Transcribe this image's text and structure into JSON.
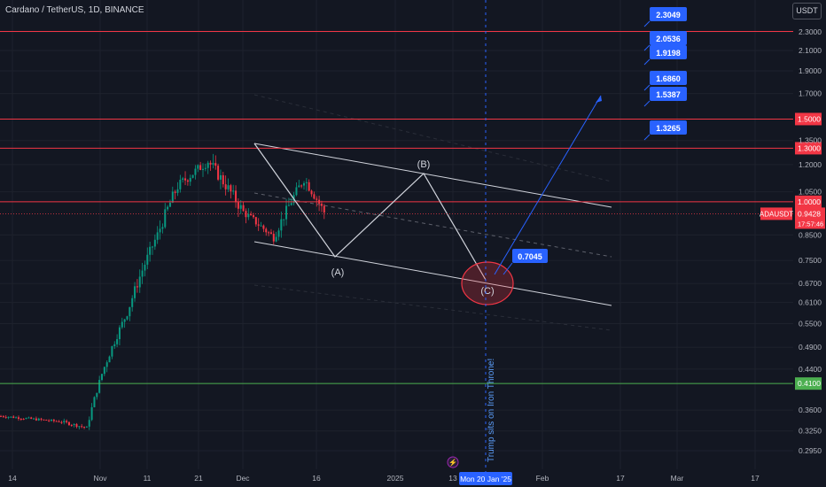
{
  "header": {
    "title": "Cardano / TetherUS, 1D, BINANCE",
    "currency": "USDT"
  },
  "chart_data": {
    "type": "candlestick",
    "symbol": "ADAUSDT",
    "price_axis": {
      "scale": "log",
      "ticks": [
        "2.3000",
        "2.1000",
        "1.9000",
        "1.7000",
        "1.3500",
        "1.2000",
        "1.0500",
        "0.8500",
        "0.7500",
        "0.6700",
        "0.6100",
        "0.5500",
        "0.4900",
        "0.4400",
        "0.3600",
        "0.3250",
        "0.2950"
      ]
    },
    "time_axis": {
      "ticks": [
        "14",
        "Nov",
        "11",
        "21",
        "Dec",
        "16",
        "2025",
        "13",
        "Feb",
        "17",
        "Mar",
        "17"
      ],
      "highlight": "Mon 20 Jan '25"
    },
    "horizontal_levels": [
      {
        "value": 2.3049,
        "color": "#f23645",
        "label": "2.3049",
        "label_style": "flag"
      },
      {
        "value": 1.5,
        "color": "#f23645",
        "label": "1.5000",
        "label_style": "axis"
      },
      {
        "value": 1.3,
        "color": "#f23645",
        "label": "1.3000",
        "label_style": "axis"
      },
      {
        "value": 1.0,
        "color": "#f23645",
        "label": "1.0000",
        "label_style": "axis"
      },
      {
        "value": 0.41,
        "color": "#4caf50",
        "label": "0.4100",
        "label_style": "axis"
      }
    ],
    "last_price": {
      "symbol": "ADAUSDT",
      "value": "0.9428",
      "countdown": "17:57:46",
      "value_num": 0.9428
    },
    "targets": [
      {
        "value": 2.3049,
        "label": "2.3049"
      },
      {
        "value": 2.0536,
        "label": "2.0536"
      },
      {
        "value": 1.9198,
        "label": "1.9198"
      },
      {
        "value": 1.686,
        "label": "1.6860"
      },
      {
        "value": 1.5387,
        "label": "1.5387"
      },
      {
        "value": 1.3265,
        "label": "1.3265"
      },
      {
        "value": 0.7045,
        "label": "0.7045"
      }
    ],
    "wave_labels": [
      {
        "label": "(A)",
        "value": 0.78
      },
      {
        "label": "(B)",
        "value": 1.2
      },
      {
        "label": "(C)",
        "value": 0.66
      }
    ],
    "annotation": "Trump sits on Iron Throne!",
    "colors": {
      "up": "#089981",
      "down": "#f23645",
      "target_box": "#2962ff",
      "arrow": "#2962ff",
      "event_line": "#2962ff",
      "support": "#4caf50",
      "resistance": "#f23645"
    }
  }
}
